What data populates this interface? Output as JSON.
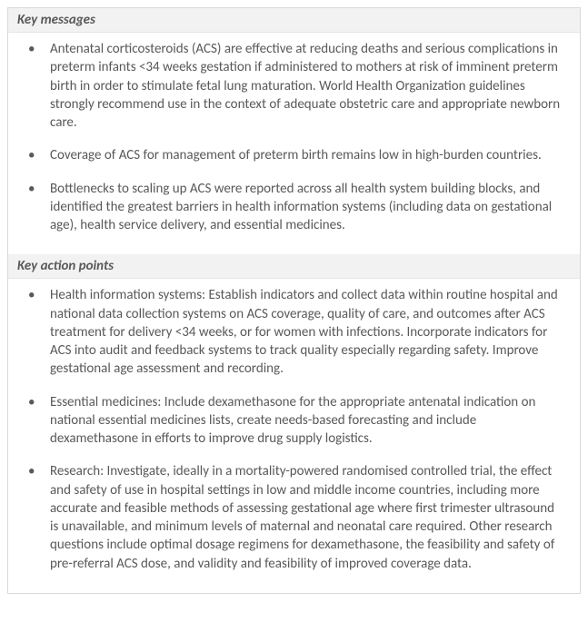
{
  "panel": {
    "border_color": "#d9d9d9",
    "background_color": "#ffffff",
    "header_background": "#f2f2f2",
    "text_color": "#595959",
    "header_fontsize": 15,
    "body_fontsize": 15,
    "line_height": 1.35
  },
  "sections": [
    {
      "header": "Key messages",
      "items": [
        "Antenatal corticosteroids (ACS) are effective at reducing deaths and serious complications in preterm infants <34 weeks gestation if administered to mothers at risk of imminent preterm birth in order to stimulate fetal lung maturation. World Health Organization guidelines strongly recommend use in the context of adequate obstetric care and appropriate newborn care.",
        "Coverage of ACS for management of preterm birth remains low in high-burden countries.",
        "Bottlenecks to scaling up ACS were reported across all health system building blocks, and identified the greatest barriers in health information systems (including data on gestational age), health service delivery, and essential medicines."
      ]
    },
    {
      "header": "Key action points",
      "items": [
        "Health information systems: Establish indicators and collect data within routine hospital and national data collection systems on ACS coverage, quality of care, and outcomes after ACS treatment for delivery <34 weeks, or for women with infections. Incorporate indicators for ACS into audit and feedback systems to track quality especially regarding safety. Improve gestational age assessment and recording.",
        "Essential medicines: Include dexamethasone for the appropriate antenatal indication on national essential medicines lists, create needs-based forecasting and include dexamethasone in efforts to improve drug supply logistics.",
        "Research: Investigate, ideally in a mortality-powered randomised controlled trial, the effect and safety of use in hospital settings in low and middle income countries, including more accurate and feasible methods of assessing gestational age where first trimester ultrasound is unavailable, and minimum levels of maternal and neonatal care required. Other research questions include optimal dosage regimens for dexamethasone, the feasibility and safety of pre-referral ACS dose, and validity and feasibility of improved coverage data."
      ]
    }
  ]
}
